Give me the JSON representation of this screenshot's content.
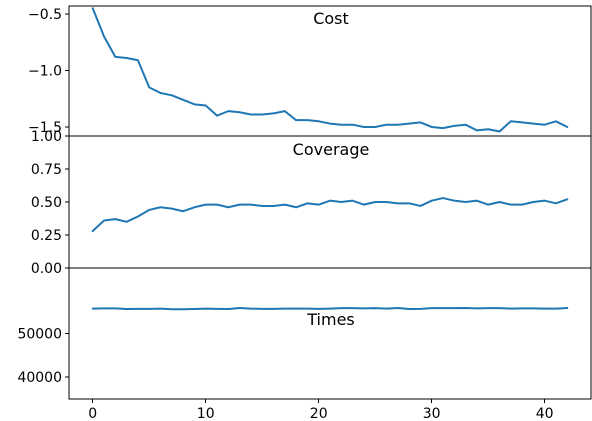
{
  "chart_data": [
    {
      "type": "line",
      "title": "Cost",
      "xlabel": "",
      "ylabel": "",
      "xlim": [
        -2.1,
        44.1
      ],
      "ylim": [
        -1.58,
        -0.43
      ],
      "yticks": [
        -0.5,
        -1.0,
        -1.5
      ],
      "ytick_labels": [
        "−0.5",
        "−1.0",
        "−1.5"
      ],
      "grid": false,
      "color": "#1f77b4",
      "x": [
        0,
        1,
        2,
        3,
        4,
        5,
        6,
        7,
        8,
        9,
        10,
        11,
        12,
        13,
        14,
        15,
        16,
        17,
        18,
        19,
        20,
        21,
        22,
        23,
        24,
        25,
        26,
        27,
        28,
        29,
        30,
        31,
        32,
        33,
        34,
        35,
        36,
        37,
        38,
        39,
        40,
        41,
        42
      ],
      "values": [
        -0.45,
        -0.7,
        -0.88,
        -0.89,
        -0.91,
        -1.15,
        -1.2,
        -1.22,
        -1.26,
        -1.3,
        -1.31,
        -1.4,
        -1.36,
        -1.37,
        -1.39,
        -1.39,
        -1.38,
        -1.36,
        -1.44,
        -1.44,
        -1.45,
        -1.47,
        -1.48,
        -1.48,
        -1.5,
        -1.5,
        -1.48,
        -1.48,
        -1.47,
        -1.46,
        -1.5,
        -1.51,
        -1.49,
        -1.48,
        -1.53,
        -1.52,
        -1.54,
        -1.45,
        -1.46,
        -1.47,
        -1.48,
        -1.45,
        -1.5
      ]
    },
    {
      "type": "line",
      "title": "Coverage",
      "xlabel": "",
      "ylabel": "",
      "xlim": [
        -2.1,
        44.1
      ],
      "ylim": [
        0.0,
        1.0
      ],
      "yticks": [
        0.0,
        0.25,
        0.5,
        0.75,
        1.0
      ],
      "ytick_labels": [
        "0.00",
        "0.25",
        "0.50",
        "0.75",
        "1.00"
      ],
      "grid": false,
      "color": "#1f77b4",
      "x": [
        0,
        1,
        2,
        3,
        4,
        5,
        6,
        7,
        8,
        9,
        10,
        11,
        12,
        13,
        14,
        15,
        16,
        17,
        18,
        19,
        20,
        21,
        22,
        23,
        24,
        25,
        26,
        27,
        28,
        29,
        30,
        31,
        32,
        33,
        34,
        35,
        36,
        37,
        38,
        39,
        40,
        41,
        42
      ],
      "values": [
        0.28,
        0.36,
        0.37,
        0.35,
        0.39,
        0.44,
        0.46,
        0.45,
        0.43,
        0.46,
        0.48,
        0.48,
        0.46,
        0.48,
        0.48,
        0.47,
        0.47,
        0.48,
        0.46,
        0.49,
        0.48,
        0.51,
        0.5,
        0.51,
        0.48,
        0.5,
        0.5,
        0.49,
        0.49,
        0.47,
        0.51,
        0.53,
        0.51,
        0.5,
        0.51,
        0.48,
        0.5,
        0.48,
        0.48,
        0.5,
        0.51,
        0.49,
        0.52
      ]
    },
    {
      "type": "line",
      "title": "Times",
      "xlabel": "",
      "ylabel": "",
      "xlim": [
        -2.1,
        44.1
      ],
      "ylim": [
        35000,
        65000
      ],
      "yticks": [
        40000,
        50000
      ],
      "ytick_labels": [
        "40000",
        "50000"
      ],
      "xticks": [
        0,
        10,
        20,
        30,
        40
      ],
      "xtick_labels": [
        "0",
        "10",
        "20",
        "30",
        "40"
      ],
      "grid": false,
      "color": "#1f77b4",
      "x": [
        0,
        1,
        2,
        3,
        4,
        5,
        6,
        7,
        8,
        9,
        10,
        11,
        12,
        13,
        14,
        15,
        16,
        17,
        18,
        19,
        20,
        21,
        22,
        23,
        24,
        25,
        26,
        27,
        28,
        29,
        30,
        31,
        32,
        33,
        34,
        35,
        36,
        37,
        38,
        39,
        40,
        41,
        42
      ],
      "values": [
        55700,
        55750,
        55750,
        55600,
        55650,
        55650,
        55700,
        55550,
        55550,
        55600,
        55700,
        55650,
        55600,
        55850,
        55700,
        55650,
        55650,
        55700,
        55700,
        55700,
        55650,
        55700,
        55800,
        55800,
        55750,
        55800,
        55700,
        55850,
        55600,
        55650,
        55800,
        55800,
        55800,
        55850,
        55750,
        55800,
        55800,
        55700,
        55750,
        55750,
        55700,
        55700,
        55850
      ]
    }
  ]
}
